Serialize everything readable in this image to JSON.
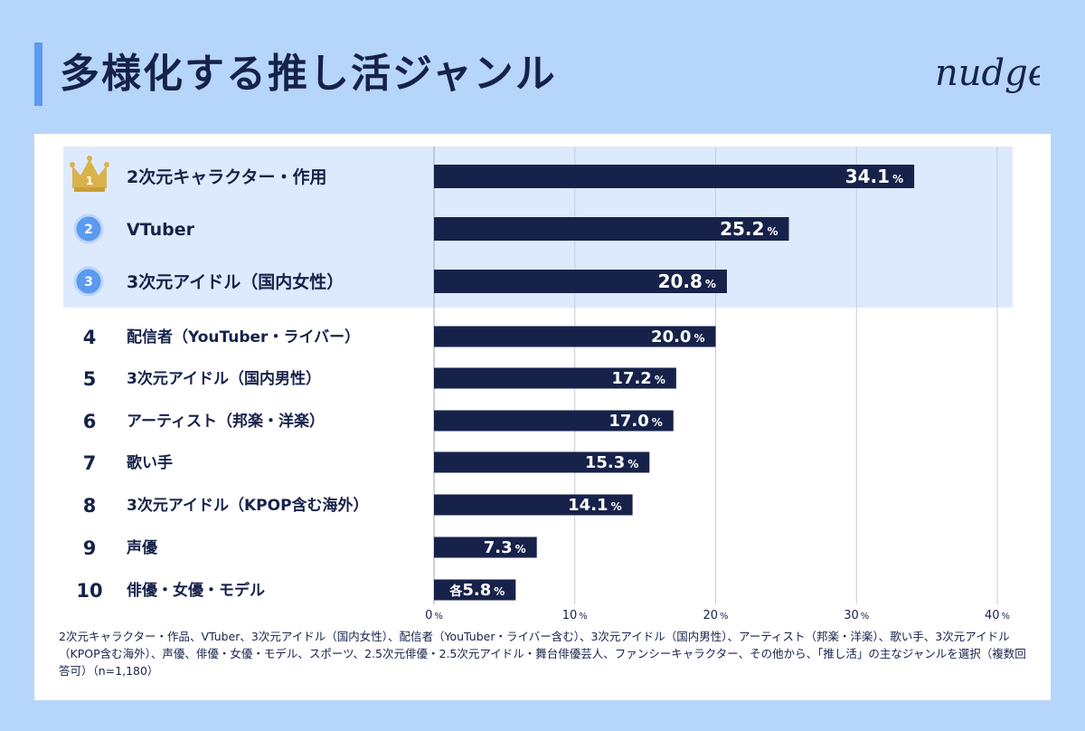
{
  "title": "多様化する推し活ジャンル",
  "logo_text": "nudge",
  "footnote": "2次元キャラクター・作品、VTuber、3次元アイドル（国内女性）、配信者（YouTuber・ライバー含む）、3次元アイドル（国内男性）、アーティスト（邦楽・洋楽）、歌い手、3次元アイドル（KPOP含む海外）、声優、俳優・女優・モデル、スポーツ、2.5次元俳優・2.5次元アイドル・舞台俳優芸人、ファンシーキャラクター、その他から、「推し活」の主なジャンルを選択（複数回答可）（n=1,180）",
  "colors": {
    "background": "#b6d5fb",
    "bar": "#16224a",
    "accent": "#5a9af0",
    "highlight": "#ddeafd",
    "gold": "#d9b24a"
  },
  "chart_data": {
    "type": "bar",
    "orientation": "horizontal",
    "ranks": [
      "1",
      "2",
      "3",
      "4",
      "5",
      "6",
      "7",
      "8",
      "9",
      "10"
    ],
    "rank_icons": [
      "crown-icon",
      "circle-badge-icon",
      "circle-badge-icon",
      null,
      null,
      null,
      null,
      null,
      null,
      null
    ],
    "categories": [
      "2次元キャラクター・作用",
      "VTuber",
      "3次元アイドル（国内女性）",
      "配信者（YouTuber・ライバー）",
      "3次元アイドル（国内男性）",
      "アーティスト（邦楽・洋楽）",
      "歌い手",
      "3次元アイドル（KPOP含む海外）",
      "声優",
      "俳優・女優・モデル"
    ],
    "values": [
      34.1,
      25.2,
      20.8,
      20.0,
      17.2,
      17.0,
      15.3,
      14.1,
      7.3,
      5.8
    ],
    "value_labels": [
      "34.1",
      "25.2",
      "20.8",
      "20.0",
      "17.2",
      "17.0",
      "15.3",
      "14.1",
      "7.3",
      "5.8"
    ],
    "value_prefixes": [
      "",
      "",
      "",
      "",
      "",
      "",
      "",
      "",
      "",
      "各"
    ],
    "value_unit": "%",
    "xlim": [
      0,
      40
    ],
    "xticks": [
      0,
      10,
      20,
      30,
      40
    ],
    "xtick_labels": [
      "0",
      "10",
      "20",
      "30",
      "40"
    ],
    "xtick_unit": "%",
    "highlight_top": 3,
    "grid": true
  }
}
